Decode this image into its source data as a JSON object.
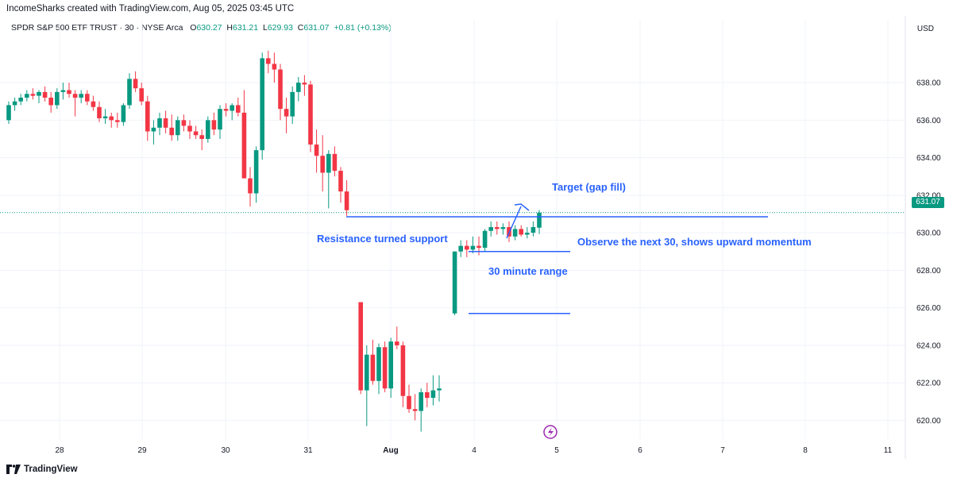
{
  "header": {
    "created_by": "IncomeSharks created with TradingView.com, Aug 05, 2025 03:45 UTC"
  },
  "symbol": {
    "name": "SPDR S&P 500 ETF TRUST · 30 · NYSE Arca",
    "o_label": "O",
    "o_value": "630.27",
    "h_label": "H",
    "h_value": "631.21",
    "l_label": "L",
    "l_value": "629.93",
    "c_label": "C",
    "c_value": "631.07",
    "change": "+0.81 (+0.13%)"
  },
  "currency": "USD",
  "last_price": "631.07",
  "footer": {
    "brand": "TradingView"
  },
  "colors": {
    "up": "#089981",
    "down": "#f23645",
    "annotation": "#2962ff",
    "text": "#131722"
  },
  "chart_data": {
    "type": "candlestick",
    "title": "SPDR S&P 500 ETF TRUST · 30 · NYSE Arca",
    "y_ticks": [
      "620.00",
      "622.00",
      "624.00",
      "626.00",
      "628.00",
      "630.00",
      "632.00",
      "634.00",
      "636.00",
      "638.00"
    ],
    "x_ticks": [
      "28",
      "29",
      "30",
      "31",
      "Aug",
      "4",
      "5",
      "6",
      "7",
      "8",
      "11"
    ],
    "ylim": [
      619.0,
      640.5
    ],
    "annotations": {
      "target": "Target (gap fill)",
      "support": "Resistance turned support",
      "observe": "Observe the next 30, shows upward momentum",
      "range": "30 minute range"
    },
    "levels": {
      "gap_fill": 630.85,
      "observe": 629.0,
      "range_low": 625.7,
      "range_high": 629.0
    },
    "candles": [
      [
        636.0,
        637.0,
        635.8,
        636.8
      ],
      [
        636.8,
        637.2,
        636.5,
        637.0
      ],
      [
        637.0,
        637.4,
        636.8,
        637.2
      ],
      [
        637.2,
        637.6,
        637.0,
        637.4
      ],
      [
        637.4,
        637.7,
        637.1,
        637.3
      ],
      [
        637.3,
        637.6,
        636.9,
        637.5
      ],
      [
        637.5,
        637.8,
        637.0,
        637.2
      ],
      [
        637.2,
        637.5,
        636.4,
        636.8
      ],
      [
        636.8,
        637.7,
        636.6,
        637.5
      ],
      [
        637.5,
        638.0,
        637.1,
        637.6
      ],
      [
        637.6,
        638.0,
        637.2,
        637.4
      ],
      [
        637.4,
        637.6,
        636.2,
        637.2
      ],
      [
        637.2,
        637.6,
        636.9,
        637.4
      ],
      [
        637.4,
        637.6,
        636.8,
        637.0
      ],
      [
        637.0,
        637.3,
        636.5,
        636.7
      ],
      [
        636.7,
        637.0,
        635.9,
        636.1
      ],
      [
        636.1,
        636.6,
        635.8,
        636.2
      ],
      [
        636.2,
        636.4,
        635.6,
        636.0
      ],
      [
        636.0,
        636.4,
        635.6,
        635.9
      ],
      [
        635.9,
        636.9,
        635.7,
        636.8
      ],
      [
        636.8,
        638.5,
        636.6,
        638.2
      ],
      [
        638.2,
        638.6,
        637.5,
        637.7
      ],
      [
        637.7,
        638.0,
        636.8,
        637.0
      ],
      [
        637.0,
        637.3,
        634.9,
        635.4
      ],
      [
        635.4,
        636.0,
        634.7,
        635.6
      ],
      [
        635.6,
        636.4,
        635.2,
        636.1
      ],
      [
        636.1,
        636.5,
        635.3,
        635.6
      ],
      [
        635.6,
        636.3,
        634.9,
        635.2
      ],
      [
        635.2,
        636.2,
        634.9,
        636.0
      ],
      [
        636.0,
        636.3,
        635.4,
        635.7
      ],
      [
        635.7,
        636.0,
        635.0,
        635.4
      ],
      [
        635.4,
        635.7,
        635.0,
        635.2
      ],
      [
        635.2,
        635.5,
        634.4,
        635.0
      ],
      [
        635.0,
        636.2,
        634.8,
        636.0
      ],
      [
        636.0,
        636.4,
        635.2,
        635.5
      ],
      [
        635.5,
        636.8,
        635.0,
        636.6
      ],
      [
        636.6,
        636.9,
        636.2,
        636.5
      ],
      [
        636.5,
        636.9,
        636.0,
        636.8
      ],
      [
        636.8,
        637.2,
        636.2,
        636.4
      ],
      [
        636.4,
        637.6,
        633.0,
        632.9
      ],
      [
        632.9,
        633.5,
        631.4,
        632.1
      ],
      [
        632.1,
        634.6,
        631.6,
        634.4
      ],
      [
        634.4,
        639.6,
        633.9,
        639.3
      ],
      [
        639.3,
        639.7,
        638.5,
        639.0
      ],
      [
        639.0,
        639.6,
        638.0,
        638.7
      ],
      [
        638.7,
        639.0,
        636.0,
        636.6
      ],
      [
        636.6,
        637.2,
        635.3,
        636.2
      ],
      [
        636.2,
        637.8,
        635.8,
        637.5
      ],
      [
        637.5,
        638.3,
        637.0,
        638.0
      ],
      [
        638.0,
        638.4,
        637.3,
        637.9
      ],
      [
        637.9,
        638.1,
        634.3,
        634.7
      ],
      [
        634.7,
        635.5,
        633.2,
        634.1
      ],
      [
        634.1,
        635.2,
        632.2,
        633.2
      ],
      [
        633.2,
        634.4,
        631.3,
        634.2
      ],
      [
        634.2,
        634.6,
        633.0,
        633.3
      ],
      [
        633.3,
        633.5,
        631.6,
        632.2
      ],
      [
        632.2,
        632.8,
        630.9,
        631.2
      ],
      [
        626.3,
        626.3,
        621.4,
        621.6
      ],
      [
        621.6,
        624.0,
        619.7,
        623.5
      ],
      [
        623.5,
        624.3,
        621.9,
        622.1
      ],
      [
        622.1,
        624.1,
        621.4,
        623.9
      ],
      [
        623.9,
        624.2,
        621.5,
        621.7
      ],
      [
        621.7,
        624.4,
        621.2,
        624.2
      ],
      [
        624.2,
        625.0,
        623.8,
        624.0
      ],
      [
        624.0,
        624.2,
        620.7,
        621.3
      ],
      [
        621.3,
        621.9,
        620.4,
        620.6
      ],
      [
        620.6,
        621.4,
        620.0,
        620.5
      ],
      [
        620.5,
        621.7,
        619.4,
        621.5
      ],
      [
        621.5,
        622.0,
        620.7,
        621.2
      ],
      [
        621.2,
        622.4,
        620.8,
        621.6
      ],
      [
        621.6,
        622.4,
        621.0,
        621.7
      ],
      [
        625.7,
        629.0,
        625.6,
        629.0
      ],
      [
        629.0,
        629.6,
        628.7,
        629.3
      ],
      [
        629.3,
        629.6,
        628.7,
        629.1
      ],
      [
        629.1,
        629.8,
        628.9,
        629.3
      ],
      [
        629.3,
        629.8,
        628.8,
        629.2
      ],
      [
        629.2,
        630.2,
        629.0,
        630.1
      ],
      [
        630.1,
        630.6,
        629.8,
        630.3
      ],
      [
        630.3,
        630.6,
        629.9,
        630.2
      ],
      [
        630.2,
        630.5,
        629.9,
        630.3
      ],
      [
        630.3,
        630.6,
        629.5,
        629.8
      ],
      [
        629.8,
        630.4,
        629.6,
        630.2
      ],
      [
        630.2,
        630.4,
        629.8,
        629.9
      ],
      [
        629.9,
        630.3,
        629.7,
        630.0
      ],
      [
        630.0,
        630.6,
        629.8,
        630.3
      ],
      [
        630.27,
        631.21,
        629.93,
        631.07
      ]
    ]
  }
}
